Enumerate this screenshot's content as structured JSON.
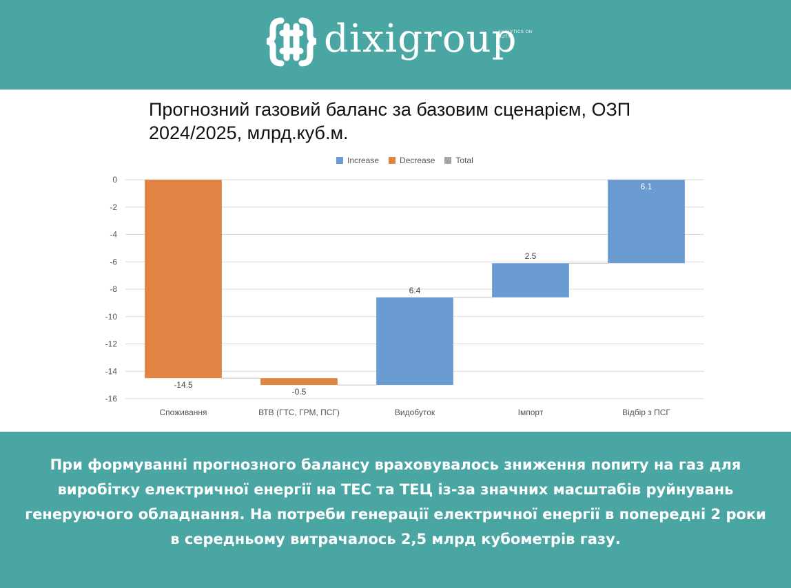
{
  "brand": {
    "name": "dixigroup",
    "tagline": "ANALYTICS ON DUTY",
    "header_color": "#4aa6a3"
  },
  "chart_data": {
    "type": "waterfall",
    "title": "Прогнозний газовий баланс за базовим сценарієм, ОЗП 2024/2025, млрд.куб.м.",
    "legend": {
      "position": "top",
      "entries": [
        {
          "name": "Increase",
          "color": "#6a9bd1"
        },
        {
          "name": "Decrease",
          "color": "#e08444"
        },
        {
          "name": "Total",
          "color": "#a5a5a5"
        }
      ]
    },
    "categories": [
      "Споживання",
      "ВТВ (ГТС, ГРМ, ПСГ)",
      "Видобуток",
      "Імпорт",
      "Відбір з ПСГ"
    ],
    "values": [
      -14.5,
      -0.5,
      6.4,
      2.5,
      6.1
    ],
    "data_labels": [
      "-14.5",
      "-0.5",
      "6.4",
      "2.5",
      "6.1"
    ],
    "ylim": [
      -16,
      0
    ],
    "yticks": [
      0,
      -2,
      -4,
      -6,
      -8,
      -10,
      -12,
      -14,
      -16
    ],
    "grid": true,
    "xlabel": "",
    "ylabel": ""
  },
  "footer": {
    "text": "При формуванні прогнозного балансу враховувалось зниження попиту на газ для виробітку електричної енергії на ТЕС та ТЕЦ із-за значних масштабів руйнувань генеруючого обладнання. На потреби генерації електричної енергії в попередні 2 роки в середньому витрачалось 2,5 млрд кубометрів газу."
  }
}
